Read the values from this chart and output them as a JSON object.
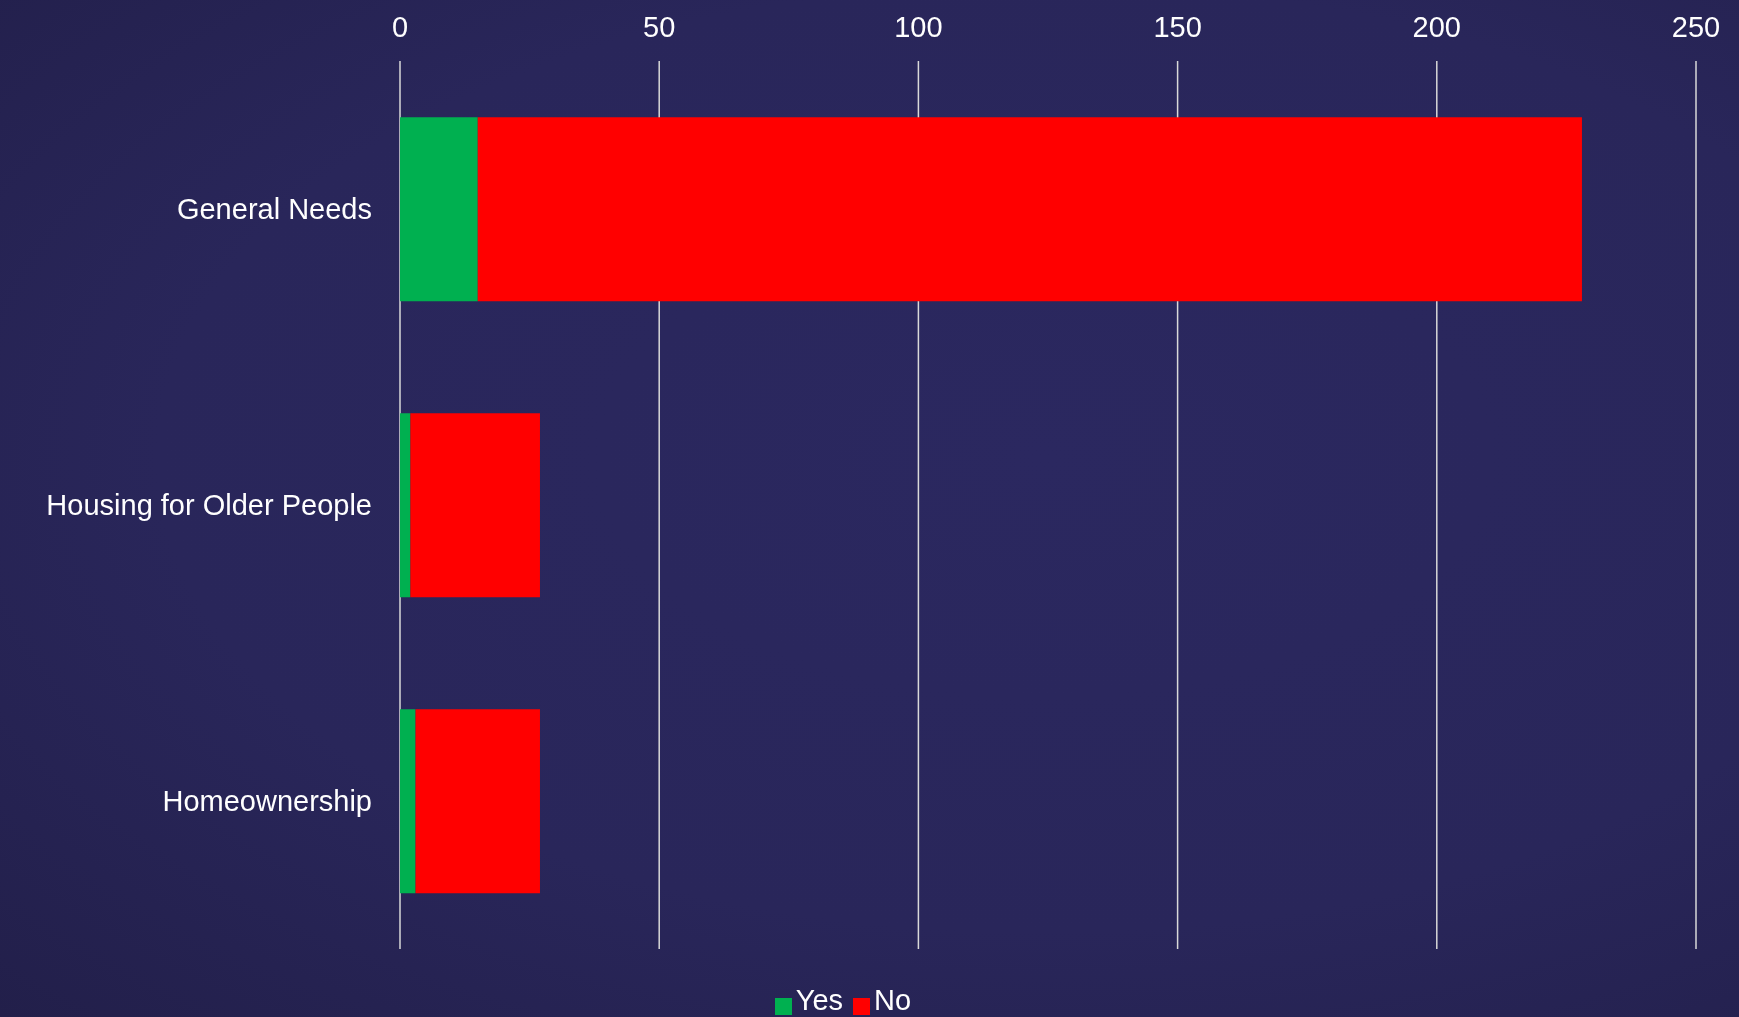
{
  "chart_data": {
    "type": "bar",
    "orientation": "horizontal",
    "stacked": true,
    "categories": [
      "General Needs",
      "Housing for Older People",
      "Homeownership"
    ],
    "series": [
      {
        "name": "Yes",
        "color": "#00b050",
        "values": [
          15,
          2,
          3
        ]
      },
      {
        "name": "No",
        "color": "#ff0000",
        "values": [
          213,
          25,
          24
        ]
      }
    ],
    "xlim": [
      0,
      250
    ],
    "xticks": [
      0,
      50,
      100,
      150,
      200,
      250
    ],
    "grid": "x",
    "legend": "bottom"
  }
}
